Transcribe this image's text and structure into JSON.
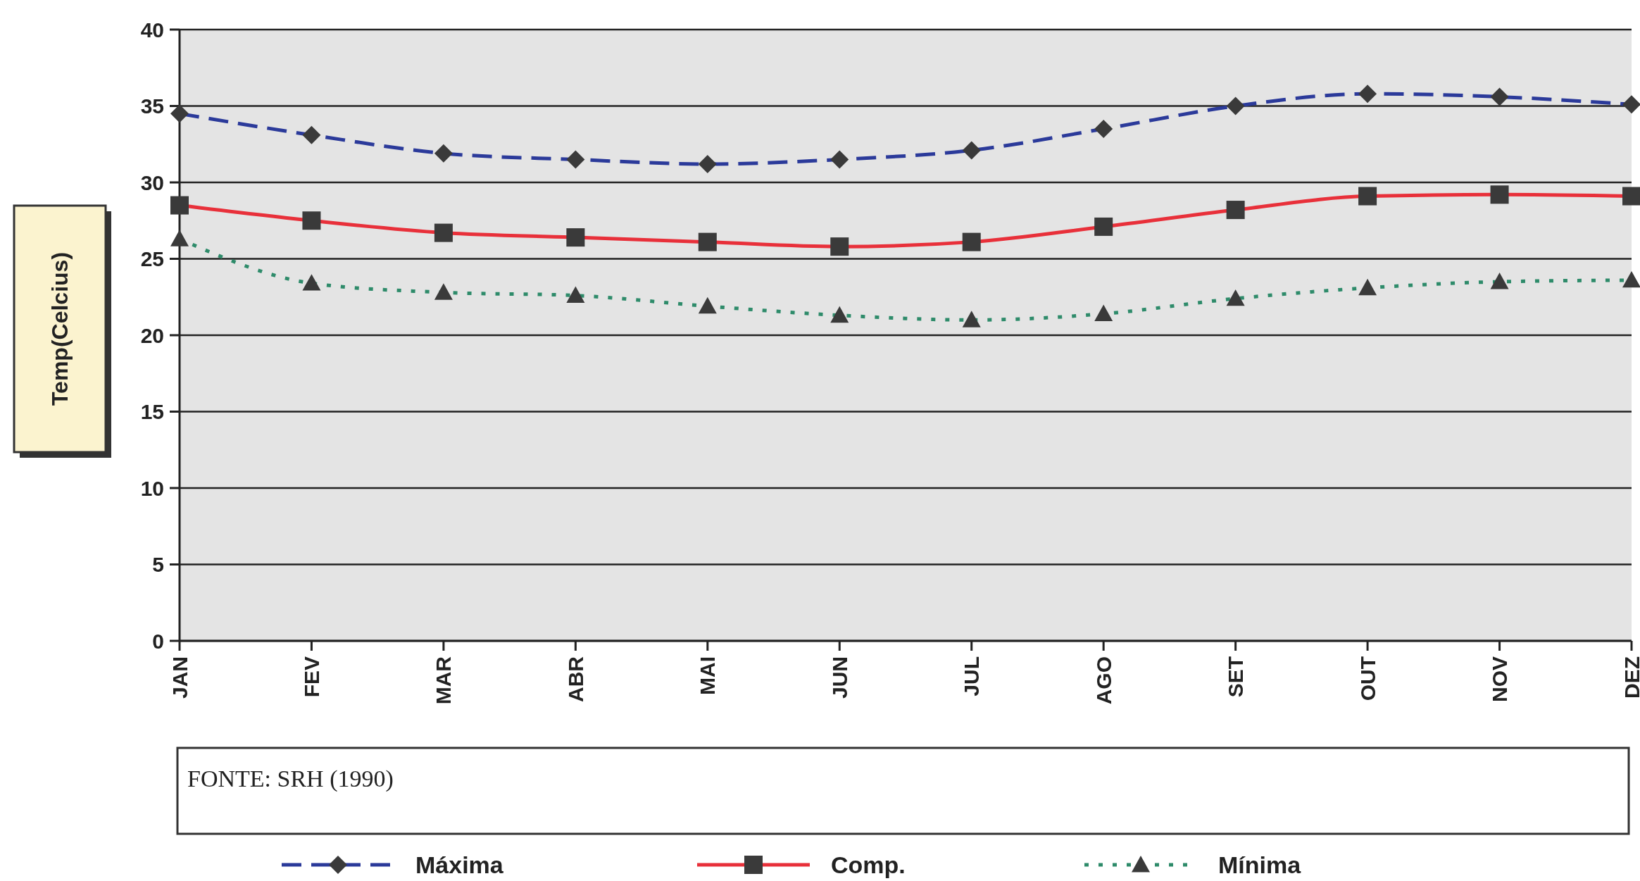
{
  "chart_data": {
    "type": "line",
    "ylabel": "Temp(Celcius)",
    "categories": [
      "JAN",
      "FEV",
      "MAR",
      "ABR",
      "MAI",
      "JUN",
      "JUL",
      "AGO",
      "SET",
      "OUT",
      "NOV",
      "DEZ"
    ],
    "series": [
      {
        "name": "Máxima",
        "color": "#2b3a9a",
        "line_style": "dashed",
        "marker": "diamond",
        "values": [
          34.5,
          33.1,
          31.9,
          31.5,
          31.2,
          31.5,
          32.1,
          33.5,
          35.0,
          35.8,
          35.6,
          35.1
        ]
      },
      {
        "name": "Comp.",
        "color": "#e8303a",
        "line_style": "solid",
        "marker": "square",
        "values": [
          28.5,
          27.5,
          26.7,
          26.4,
          26.1,
          25.8,
          26.1,
          27.1,
          28.2,
          29.1,
          29.2,
          29.1
        ]
      },
      {
        "name": "Mínima",
        "color": "#2e8b6a",
        "line_style": "dotted",
        "marker": "triangle",
        "values": [
          26.3,
          23.4,
          22.8,
          22.6,
          21.9,
          21.3,
          21.0,
          21.4,
          22.4,
          23.1,
          23.5,
          23.6
        ]
      }
    ],
    "ylim": [
      0,
      40
    ],
    "yticks": [
      0,
      5,
      10,
      15,
      20,
      25,
      30,
      35,
      40
    ],
    "grid": "y",
    "legend": "bottom",
    "annotations": [
      "FONTE: SRH (1990)"
    ]
  }
}
